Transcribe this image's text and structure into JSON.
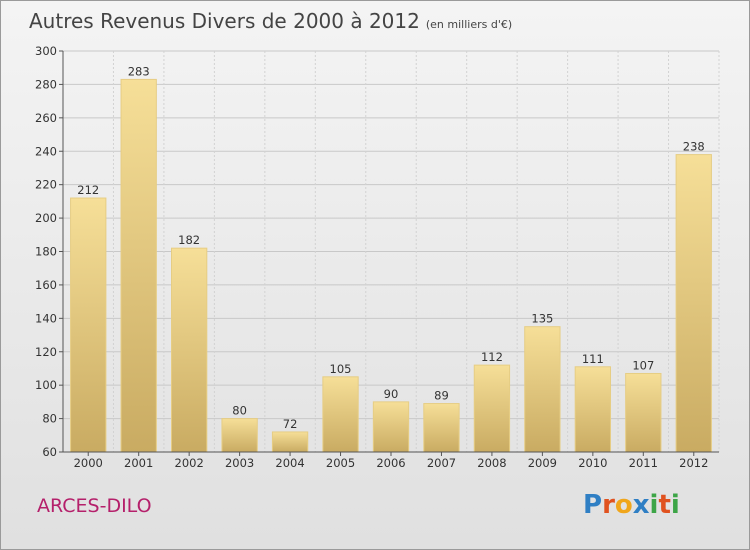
{
  "header": {
    "title": "Autres Revenus Divers de 2000 à 2012",
    "unit": "(en milliers d'€)"
  },
  "location": "ARCES-DILO",
  "logo": {
    "text": "Proxiti"
  },
  "chart_data": {
    "type": "bar",
    "categories": [
      "2000",
      "2001",
      "2002",
      "2003",
      "2004",
      "2005",
      "2006",
      "2007",
      "2008",
      "2009",
      "2010",
      "2011",
      "2012"
    ],
    "values": [
      212,
      283,
      182,
      80,
      72,
      105,
      90,
      89,
      112,
      135,
      111,
      107,
      238
    ],
    "ylim": [
      60,
      300
    ],
    "yticks": [
      60,
      80,
      100,
      120,
      140,
      160,
      180,
      200,
      220,
      240,
      260,
      280,
      300
    ],
    "grid": true,
    "colors": {
      "bar_top": "#f6df98",
      "bar_bottom": "#c9ab62",
      "bar_edge": "#e6cd84"
    }
  }
}
